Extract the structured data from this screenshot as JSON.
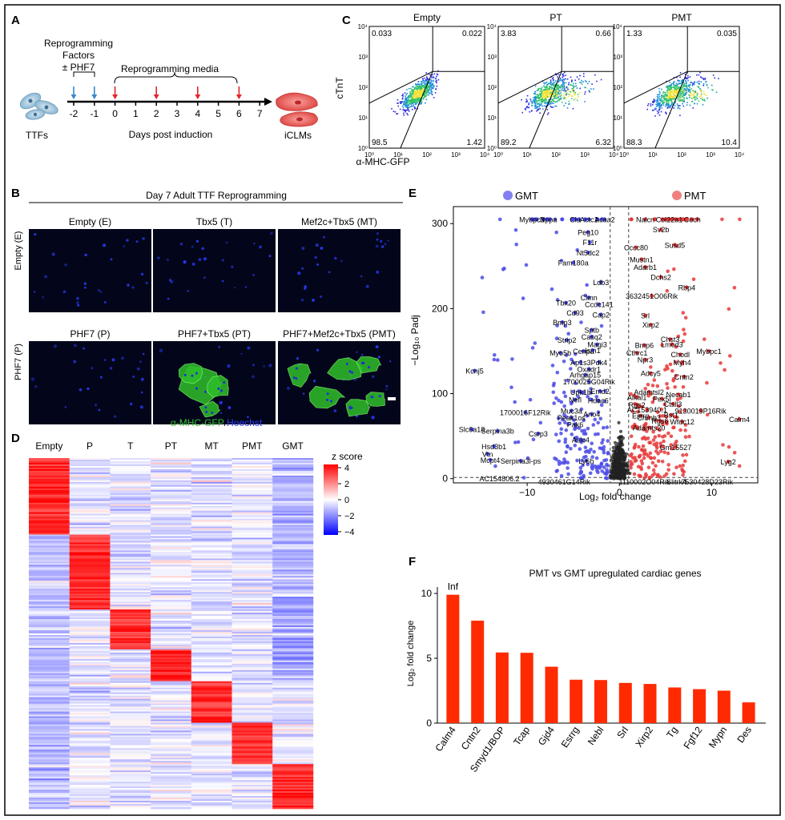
{
  "panels": {
    "A": {
      "letter": "A",
      "reprog_line1": "Reprogramming",
      "reprog_line2": "Factors",
      "reprog_line3": "± PHF7",
      "media_label": "Reprogramming media",
      "days": [
        "-2",
        "-1",
        "0",
        "1",
        "2",
        "3",
        "4",
        "5",
        "6",
        "7"
      ],
      "blue_arrow_days": [
        -2,
        -1
      ],
      "red_arrow_days": [
        0,
        2,
        4,
        6
      ],
      "xlabel": "Days post induction",
      "left_cells": "TTFs",
      "right_cells": "iCLMs",
      "colors": {
        "blue_arrow": "#3a87c8",
        "red_arrow": "#e2252b",
        "ttf_cell": "#9dc3dc",
        "iclm_cell": "#e8534f"
      }
    },
    "B": {
      "letter": "B",
      "title": "Day 7 Adult TTF Reprogramming",
      "row_labels": [
        "Empty (E)",
        "PHF7 (P)"
      ],
      "tiles": [
        "Empty (E)",
        "Tbx5 (T)",
        "Mef2c+Tbx5 (MT)",
        "PHF7 (P)",
        "PHF7+Tbx5 (PT)",
        "PHF7+Mef2c+Tbx5 (PMT)"
      ],
      "legend_green": "α-MHC-GFP",
      "legend_sep": "/",
      "legend_blue": "Hoechst",
      "colors": {
        "gfp": "#35c42e",
        "hoechst": "#2a3cff"
      }
    },
    "C": {
      "letter": "C",
      "ylabel": "cTnT",
      "xlabel": "α-MHC-GFP",
      "ticks": [
        "10⁰",
        "10¹",
        "10²",
        "10³",
        "10⁴"
      ],
      "plots": [
        {
          "title": "Empty",
          "q": [
            "0.033",
            "0.022",
            "98.5",
            "1.42"
          ]
        },
        {
          "title": "PT",
          "q": [
            "3.83",
            "0.66",
            "89.2",
            "6.32"
          ]
        },
        {
          "title": "PMT",
          "q": [
            "1.33",
            "0.035",
            "88.3",
            "10.4"
          ]
        }
      ]
    },
    "D": {
      "letter": "D",
      "columns": [
        "Empty",
        "P",
        "T",
        "PT",
        "MT",
        "PMT",
        "GMT"
      ],
      "legend_title": "z score",
      "legend_ticks": [
        "4",
        "2",
        "0",
        "−2",
        "−4"
      ],
      "colors": {
        "high": "#ff0000",
        "mid": "#ffffff",
        "low": "#0000ff"
      }
    },
    "E": {
      "letter": "E",
      "left_group": "GMT",
      "right_group": "PMT",
      "xlabel": "Log₂ fold change",
      "ylabel": "−Log₁₀ Padj",
      "colors": {
        "gmt": "#4a4ae8",
        "pmt": "#e8383a",
        "ns": "#222222"
      }
    },
    "F": {
      "letter": "F",
      "title": "PMT vs GMT upregulated cardiac genes",
      "inf_label": "Inf",
      "bar_color": "#ff2a00"
    }
  },
  "chart_data": [
    {
      "type": "scatter",
      "panel": "E",
      "xlabel": "Log₂ fold change",
      "ylabel": "−Log₁₀ Padj",
      "xticks": [
        "−10",
        "0",
        "10"
      ],
      "yticks": [
        "0",
        "100",
        "200",
        "300"
      ],
      "xlim": [
        -18,
        15
      ],
      "ylim": [
        -5,
        320
      ],
      "thresholds": {
        "x": [
          -1,
          1
        ],
        "y": 1.3
      },
      "labels": [
        {
          "t": "Mybpc3",
          "x": -9.5,
          "y": 305
        },
        {
          "t": "Nppa",
          "x": -7.7,
          "y": 305
        },
        {
          "t": "Clu",
          "x": -4.8,
          "y": 305
        },
        {
          "t": "Actc1",
          "x": -3.3,
          "y": 305
        },
        {
          "t": "Acaa2",
          "x": -1.6,
          "y": 305
        },
        {
          "t": "Nalcn",
          "x": 2.8,
          "y": 305
        },
        {
          "t": "Col22a1",
          "x": 5.4,
          "y": 305
        },
        {
          "t": "Coch",
          "x": 7.9,
          "y": 305
        },
        {
          "t": "Sv2b",
          "x": 4.5,
          "y": 293
        },
        {
          "t": "Peg10",
          "x": -3.4,
          "y": 290
        },
        {
          "t": "F11r",
          "x": -3.2,
          "y": 278
        },
        {
          "t": "Susd5",
          "x": 6.0,
          "y": 275
        },
        {
          "t": "Nt5dc2",
          "x": -3.4,
          "y": 266
        },
        {
          "t": "Cccc80",
          "x": 1.8,
          "y": 272
        },
        {
          "t": "Fam180a",
          "x": -5.0,
          "y": 254
        },
        {
          "t": "Mustn1",
          "x": 2.4,
          "y": 258
        },
        {
          "t": "Adarb1",
          "x": 2.8,
          "y": 249
        },
        {
          "t": "Dchs2",
          "x": 4.5,
          "y": 237
        },
        {
          "t": "Ldb3",
          "x": -2.0,
          "y": 231
        },
        {
          "t": "Rbp4",
          "x": 7.3,
          "y": 225
        },
        {
          "t": "Clmn",
          "x": -3.3,
          "y": 213
        },
        {
          "t": "3632451O06Rik",
          "x": 3.5,
          "y": 215
        },
        {
          "t": "Tbx20",
          "x": -5.8,
          "y": 207
        },
        {
          "t": "Ccdc141",
          "x": -2.2,
          "y": 205
        },
        {
          "t": "Cd93",
          "x": -4.8,
          "y": 195
        },
        {
          "t": "Cap2",
          "x": -2.0,
          "y": 193
        },
        {
          "t": "Srl",
          "x": 2.8,
          "y": 192
        },
        {
          "t": "Xirp2",
          "x": 3.4,
          "y": 181
        },
        {
          "t": "Bmp3",
          "x": -6.2,
          "y": 184
        },
        {
          "t": "Sptb",
          "x": -3.0,
          "y": 175
        },
        {
          "t": "Casq2",
          "x": -3.0,
          "y": 167
        },
        {
          "t": "Strip2",
          "x": -5.7,
          "y": 163
        },
        {
          "t": "Chst3",
          "x": 5.5,
          "y": 164
        },
        {
          "t": "Magi3",
          "x": -2.4,
          "y": 158
        },
        {
          "t": "Lmod3",
          "x": 5.7,
          "y": 158
        },
        {
          "t": "Bmp6",
          "x": 2.7,
          "y": 157
        },
        {
          "t": "Cenpa",
          "x": -3.9,
          "y": 150
        },
        {
          "t": "Ism1",
          "x": -2.9,
          "y": 151
        },
        {
          "t": "Myo5b",
          "x": -6.4,
          "y": 148
        },
        {
          "t": "Mybpc1",
          "x": 9.7,
          "y": 150
        },
        {
          "t": "Cthrc1",
          "x": 1.9,
          "y": 148
        },
        {
          "t": "Chodl",
          "x": 6.6,
          "y": 146
        },
        {
          "t": "Npr3",
          "x": 2.8,
          "y": 140
        },
        {
          "t": "Myh4",
          "x": 6.8,
          "y": 137
        },
        {
          "t": "Ap1s3",
          "x": -4.2,
          "y": 137
        },
        {
          "t": "Pdk4",
          "x": -2.2,
          "y": 137
        },
        {
          "t": "Kcnj5",
          "x": -15.7,
          "y": 127
        },
        {
          "t": "Adcy5",
          "x": 3.4,
          "y": 124
        },
        {
          "t": "Oxadr1",
          "x": -3.3,
          "y": 129
        },
        {
          "t": "Arhgap15",
          "x": -3.7,
          "y": 122
        },
        {
          "t": "Cntn2",
          "x": 7.0,
          "y": 120
        },
        {
          "t": "1700025G04Rik",
          "x": -3.3,
          "y": 114
        },
        {
          "t": "Upk1b",
          "x": -4.2,
          "y": 102
        },
        {
          "t": "Emd2",
          "x": -2.1,
          "y": 103
        },
        {
          "t": "Adamtsl2",
          "x": 3.2,
          "y": 102
        },
        {
          "t": "Necab1",
          "x": 6.4,
          "y": 99
        },
        {
          "t": "Nefl",
          "x": -4.8,
          "y": 93
        },
        {
          "t": "Hdac6",
          "x": -2.3,
          "y": 92
        },
        {
          "t": "Alkal1",
          "x": 1.9,
          "y": 96
        },
        {
          "t": "Pex5l",
          "x": 4.6,
          "y": 94
        },
        {
          "t": "Ctsll3",
          "x": 5.8,
          "y": 88
        },
        {
          "t": "Rgs2",
          "x": 1.9,
          "y": 87
        },
        {
          "t": "AC153940.1",
          "x": 3.0,
          "y": 81
        },
        {
          "t": "9130019P16Rik",
          "x": 8.8,
          "y": 80
        },
        {
          "t": "1700016F12Rik",
          "x": -10.2,
          "y": 78
        },
        {
          "t": "Muc3a",
          "x": -5.2,
          "y": 80
        },
        {
          "t": "Ano4",
          "x": -3.0,
          "y": 76
        },
        {
          "t": "Peak1os",
          "x": -5.2,
          "y": 72
        },
        {
          "t": "Bst1",
          "x": 5.6,
          "y": 75
        },
        {
          "t": "Calm4",
          "x": 13.0,
          "y": 70
        },
        {
          "t": "Wfdc12",
          "x": 6.8,
          "y": 67
        },
        {
          "t": "Pak6",
          "x": -4.8,
          "y": 64
        },
        {
          "t": "Adamts20",
          "x": 3.2,
          "y": 60
        },
        {
          "t": "Slc6a18",
          "x": -16.0,
          "y": 58
        },
        {
          "t": "Serpina3b",
          "x": -13.2,
          "y": 56
        },
        {
          "t": "Csrp3",
          "x": -8.8,
          "y": 53
        },
        {
          "t": "Hsd3b1",
          "x": -13.6,
          "y": 38
        },
        {
          "t": "Asic4",
          "x": -4.2,
          "y": 46
        },
        {
          "t": "Esrrg",
          "x": 2.3,
          "y": 74
        },
        {
          "t": "Chrnb3",
          "x": 3.2,
          "y": 72
        },
        {
          "t": "Rgs6",
          "x": 4.4,
          "y": 68
        },
        {
          "t": "Gm15527",
          "x": 6.1,
          "y": 37
        },
        {
          "t": "Vtn",
          "x": -14.3,
          "y": 29
        },
        {
          "t": "Mcpt4",
          "x": -14.0,
          "y": 22
        },
        {
          "t": "Serpina3l-ps",
          "x": -10.7,
          "y": 21
        },
        {
          "t": "Ly6h",
          "x": -3.6,
          "y": 21
        },
        {
          "t": "Lyg2",
          "x": 11.8,
          "y": 20
        },
        {
          "t": "AC154806.2",
          "x": -13.0,
          "y": -3
        },
        {
          "t": "4930461G14Rik",
          "x": -6.0,
          "y": -7
        },
        {
          "t": "1110002O04Rik",
          "x": 2.7,
          "y": -7
        },
        {
          "t": "Slitrk4",
          "x": 6.2,
          "y": -7
        },
        {
          "t": "7530428D23Rik",
          "x": 9.5,
          "y": -7
        }
      ]
    },
    {
      "type": "bar",
      "panel": "F",
      "title": "PMT vs GMT upregulated cardiac genes",
      "categories": [
        "Calm4",
        "Cntn2",
        "Smyd1/BOP",
        "Tcap",
        "Gjd4",
        "Esrrg",
        "Nebl",
        "Srl",
        "Xirp2",
        "Tg",
        "Fgf12",
        "Mypn",
        "Des"
      ],
      "values": [
        9.9,
        7.9,
        5.45,
        5.42,
        4.35,
        3.35,
        3.32,
        3.1,
        3.02,
        2.75,
        2.62,
        2.5,
        1.6
      ],
      "ylabel": "Log₂ fold change",
      "yticks": [
        "0",
        "5",
        "10"
      ],
      "ylim": [
        0,
        10.5
      ],
      "annotation": "Inf"
    }
  ]
}
